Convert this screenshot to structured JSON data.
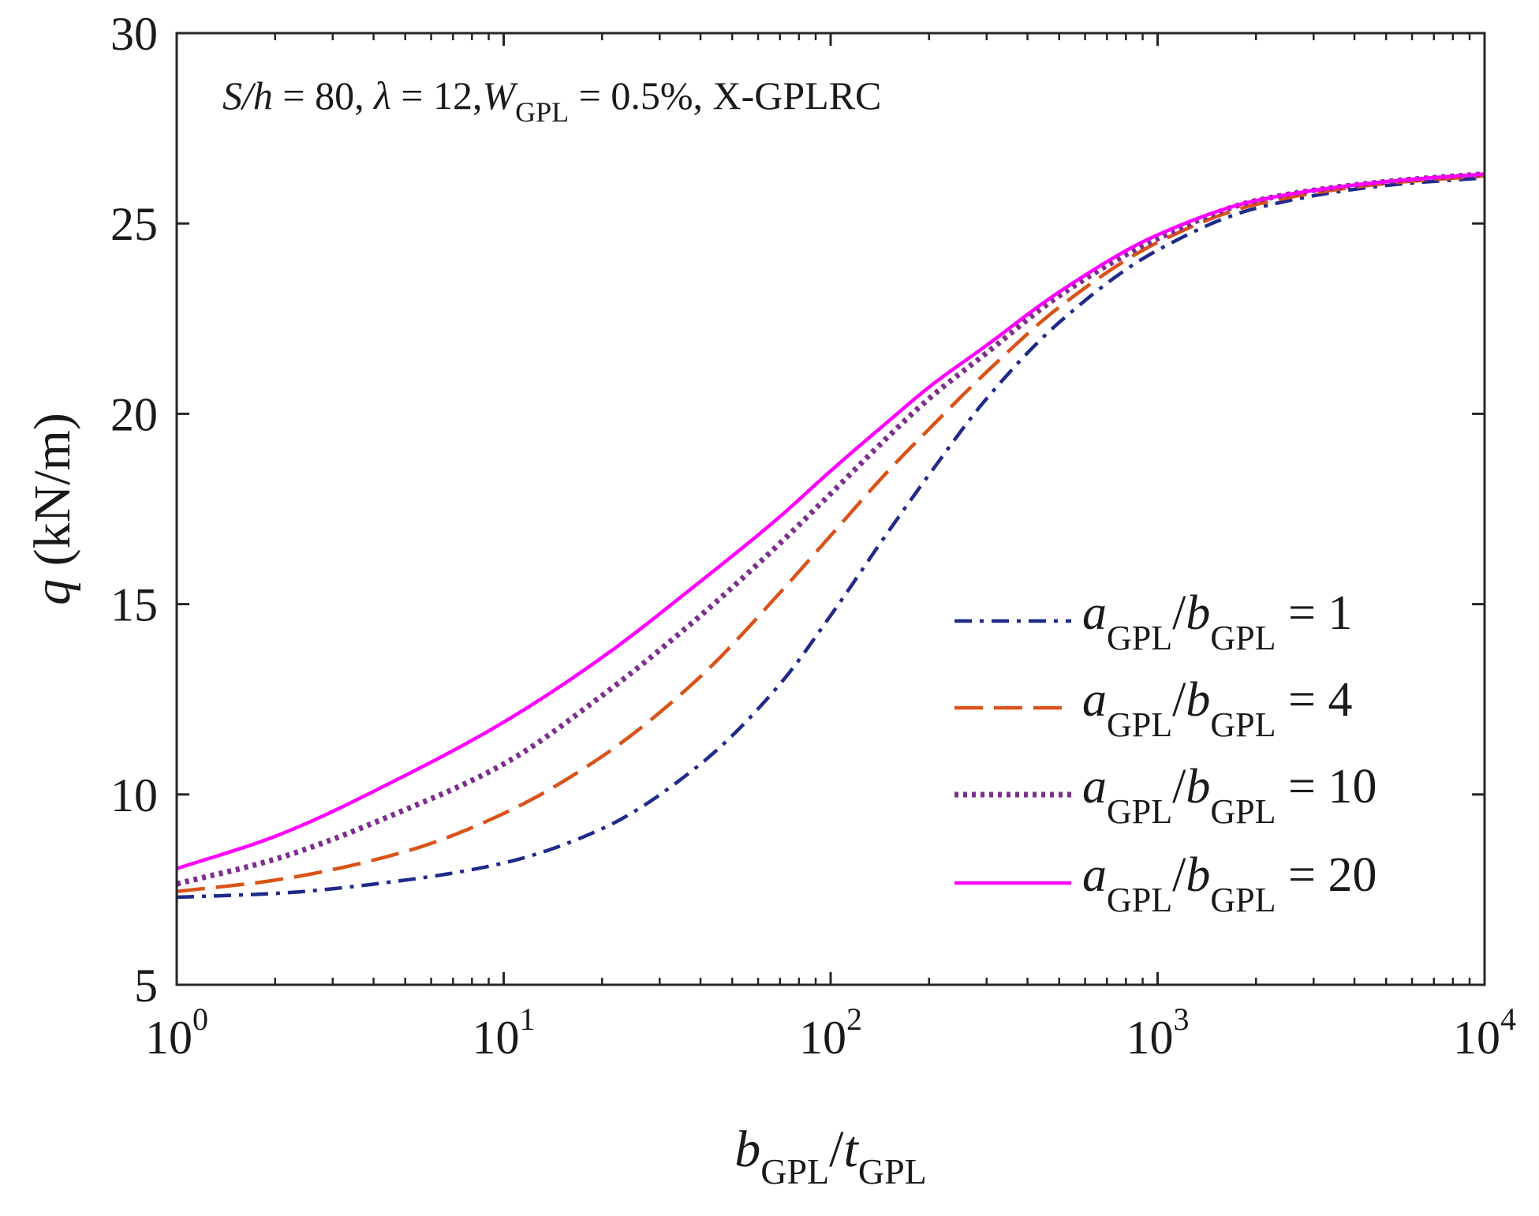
{
  "chart_data": {
    "type": "line",
    "x_scale": "log",
    "xlim": [
      1,
      10000
    ],
    "ylim": [
      5,
      30
    ],
    "x_ticks": [
      {
        "base": "10",
        "exp": "0"
      },
      {
        "base": "10",
        "exp": "1"
      },
      {
        "base": "10",
        "exp": "2"
      },
      {
        "base": "10",
        "exp": "3"
      },
      {
        "base": "10",
        "exp": "4"
      }
    ],
    "y_ticks": [
      "5",
      "10",
      "15",
      "20",
      "25",
      "30"
    ],
    "xlabel": {
      "b": "b",
      "sub1": "GPL",
      "slash": "/",
      "t": "t",
      "sub2": "GPL"
    },
    "ylabel": {
      "var": "q",
      "unit": " (kN/m)"
    },
    "annotation": {
      "Sh": "S/h",
      "part1": " = 80, ",
      "lambda": "λ",
      "part2": " = 12,",
      "W": "W",
      "Wsub": "GPL",
      "part3": " = 0.5%, X-GPLRC"
    },
    "legend_placement": "right",
    "series": [
      {
        "name": "a_GPL/b_GPL = 1",
        "label": {
          "a": "a",
          "sub1": "GPL",
          "slash": "/",
          "b": "b",
          "sub2": "GPL",
          "eq": " = 1"
        },
        "color": "#1f2a8a",
        "style": "dashdot",
        "x": [
          1,
          2,
          5,
          10,
          20,
          40,
          70,
          100,
          150,
          200,
          300,
          500,
          1000,
          2000,
          5000,
          10000
        ],
        "y": [
          7.3,
          7.4,
          7.75,
          8.2,
          9.1,
          10.8,
          12.9,
          14.7,
          16.9,
          18.4,
          20.4,
          22.4,
          24.3,
          25.4,
          26.0,
          26.2
        ]
      },
      {
        "name": "a_GPL/b_GPL = 4",
        "label": {
          "a": "a",
          "sub1": "GPL",
          "slash": "/",
          "b": "b",
          "sub2": "GPL",
          "eq": " = 4"
        },
        "color": "#d95319",
        "style": "dashed",
        "x": [
          1,
          2,
          5,
          10,
          20,
          40,
          70,
          100,
          150,
          200,
          300,
          500,
          1000,
          2000,
          5000,
          10000
        ],
        "y": [
          7.45,
          7.75,
          8.5,
          9.5,
          11.0,
          13.1,
          15.3,
          16.8,
          18.5,
          19.6,
          21.1,
          22.8,
          24.5,
          25.5,
          26.05,
          26.25
        ]
      },
      {
        "name": "a_GPL/b_GPL = 10",
        "label": {
          "a": "a",
          "sub1": "GPL",
          "slash": "/",
          "b": "b",
          "sub2": "GPL",
          "eq": " = 10"
        },
        "color": "#7e2f8e",
        "style": "dotted",
        "x": [
          1,
          2,
          5,
          10,
          20,
          40,
          70,
          100,
          150,
          200,
          300,
          500,
          1000,
          2000,
          5000,
          10000
        ],
        "y": [
          7.65,
          8.3,
          9.6,
          10.8,
          12.6,
          14.7,
          16.6,
          17.9,
          19.4,
          20.4,
          21.6,
          23.1,
          24.6,
          25.6,
          26.1,
          26.3
        ]
      },
      {
        "name": "a_GPL/b_GPL = 20",
        "label": {
          "a": "a",
          "sub1": "GPL",
          "slash": "/",
          "b": "b",
          "sub2": "GPL",
          "eq": " = 20"
        },
        "color": "#ff00ff",
        "style": "solid",
        "x": [
          1,
          2,
          5,
          10,
          20,
          40,
          70,
          100,
          150,
          200,
          300,
          500,
          1000,
          2000,
          5000,
          10000
        ],
        "y": [
          8.05,
          8.9,
          10.5,
          11.9,
          13.6,
          15.6,
          17.3,
          18.5,
          19.8,
          20.7,
          21.8,
          23.2,
          24.7,
          25.6,
          26.1,
          26.3
        ]
      }
    ]
  }
}
